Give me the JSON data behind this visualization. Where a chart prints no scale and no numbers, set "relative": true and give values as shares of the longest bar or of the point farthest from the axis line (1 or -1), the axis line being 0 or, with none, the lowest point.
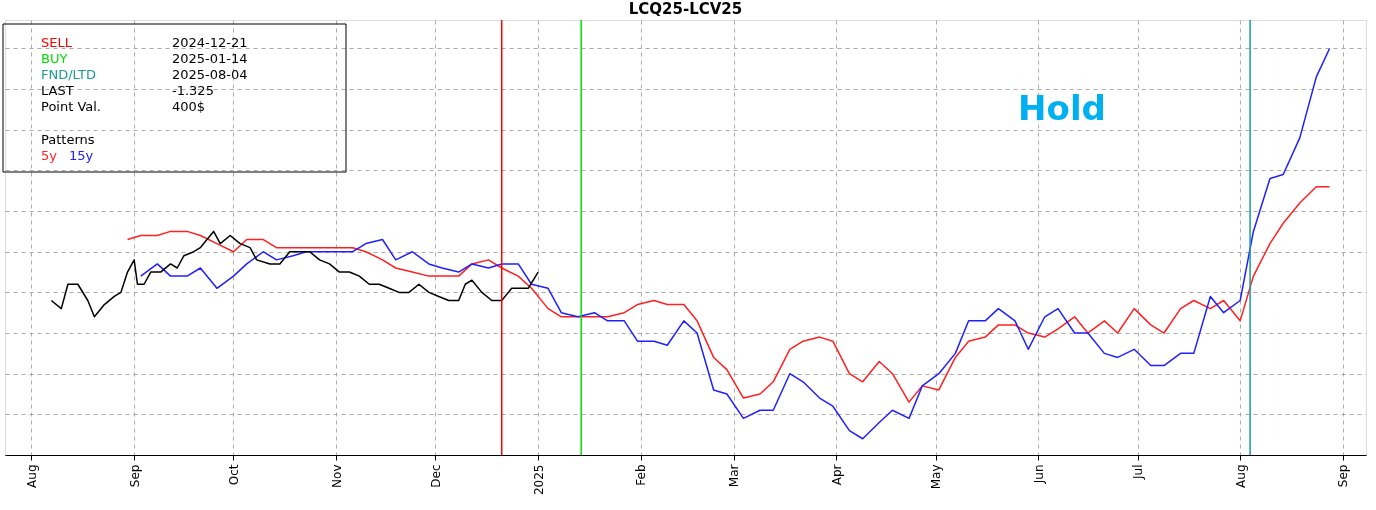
{
  "chart_data": {
    "type": "line",
    "title": "LCQ25-LCV25",
    "relative": true,
    "grid": true,
    "legend": "top left",
    "legend_title": "Patterns",
    "xlim": [
      "2024-07-24",
      "2025-09-08"
    ],
    "xticks": [
      {
        "value": "2024-08-01",
        "label": "Aug"
      },
      {
        "value": "2024-09-01",
        "label": "Sep"
      },
      {
        "value": "2024-10-01",
        "label": "Oct"
      },
      {
        "value": "2024-11-01",
        "label": "Nov"
      },
      {
        "value": "2024-12-01",
        "label": "Dec"
      },
      {
        "value": "2025-01-01",
        "label": "2025"
      },
      {
        "value": "2025-02-01",
        "label": "Feb"
      },
      {
        "value": "2025-03-01",
        "label": "Mar"
      },
      {
        "value": "2025-04-01",
        "label": "Apr"
      },
      {
        "value": "2025-05-01",
        "label": "May"
      },
      {
        "value": "2025-06-01",
        "label": "Jun"
      },
      {
        "value": "2025-07-01",
        "label": "Jul"
      },
      {
        "value": "2025-08-01",
        "label": "Aug"
      },
      {
        "value": "2025-09-01",
        "label": "Sep"
      }
    ],
    "x": [
      "2024-08-30",
      "2024-09-03",
      "2024-09-08",
      "2024-09-12",
      "2024-09-17",
      "2024-09-21",
      "2024-09-26",
      "2024-10-01",
      "2024-10-05",
      "2024-10-10",
      "2024-10-14",
      "2024-10-19",
      "2024-10-23",
      "2024-10-28",
      "2024-11-01",
      "2024-11-06",
      "2024-11-10",
      "2024-11-15",
      "2024-11-19",
      "2024-11-24",
      "2024-11-29",
      "2024-12-03",
      "2024-12-08",
      "2024-12-12",
      "2024-12-17",
      "2024-12-21",
      "2024-12-26",
      "2024-12-30",
      "2025-01-04",
      "2025-01-08",
      "2025-01-13",
      "2025-01-18",
      "2025-01-22",
      "2025-01-27",
      "2025-01-31",
      "2025-02-05",
      "2025-02-09",
      "2025-02-14",
      "2025-02-18",
      "2025-02-23",
      "2025-02-27",
      "2025-03-04",
      "2025-03-09",
      "2025-03-13",
      "2025-03-18",
      "2025-03-22",
      "2025-03-27",
      "2025-03-31",
      "2025-04-05",
      "2025-04-09",
      "2025-04-14",
      "2025-04-18",
      "2025-04-23",
      "2025-04-27",
      "2025-05-02",
      "2025-05-07",
      "2025-05-11",
      "2025-05-16",
      "2025-05-20",
      "2025-05-25",
      "2025-05-29",
      "2025-06-03",
      "2025-06-07",
      "2025-06-12",
      "2025-06-16",
      "2025-06-21",
      "2025-06-25",
      "2025-06-30",
      "2025-07-05",
      "2025-07-09",
      "2025-07-14",
      "2025-07-18",
      "2025-07-23",
      "2025-07-27",
      "2025-08-01",
      "2025-08-05",
      "2025-08-10",
      "2025-08-14",
      "2025-08-19",
      "2025-08-24",
      "2025-08-28"
    ],
    "series": [
      {
        "name": "5y",
        "color": "#ff2020",
        "values": [
          0.53,
          0.54,
          0.54,
          0.55,
          0.55,
          0.54,
          0.52,
          0.5,
          0.53,
          0.53,
          0.51,
          0.51,
          0.51,
          0.51,
          0.51,
          0.51,
          0.5,
          0.48,
          0.46,
          0.45,
          0.44,
          0.44,
          0.44,
          0.47,
          0.48,
          0.46,
          0.44,
          0.41,
          0.36,
          0.34,
          0.34,
          0.34,
          0.34,
          0.35,
          0.37,
          0.38,
          0.37,
          0.37,
          0.33,
          0.24,
          0.21,
          0.14,
          0.15,
          0.18,
          0.26,
          0.28,
          0.29,
          0.28,
          0.2,
          0.18,
          0.23,
          0.2,
          0.13,
          0.17,
          0.16,
          0.24,
          0.28,
          0.29,
          0.32,
          0.32,
          0.3,
          0.29,
          0.31,
          0.34,
          0.3,
          0.33,
          0.3,
          0.36,
          0.32,
          0.3,
          0.36,
          0.38,
          0.36,
          0.38,
          0.33,
          0.44,
          0.52,
          0.57,
          0.62,
          0.66,
          0.66
        ]
      },
      {
        "name": "15y",
        "color": "#2020ff",
        "values": [
          null,
          0.44,
          0.47,
          0.44,
          0.44,
          0.46,
          0.41,
          0.44,
          0.47,
          0.5,
          0.48,
          0.49,
          0.5,
          0.5,
          0.5,
          0.5,
          0.52,
          0.53,
          0.48,
          0.5,
          0.47,
          0.46,
          0.45,
          0.47,
          0.46,
          0.47,
          0.47,
          0.42,
          0.41,
          0.35,
          0.34,
          0.35,
          0.33,
          0.33,
          0.28,
          0.28,
          0.27,
          0.33,
          0.3,
          0.16,
          0.15,
          0.09,
          0.11,
          0.11,
          0.2,
          0.18,
          0.14,
          0.12,
          0.06,
          0.04,
          0.08,
          0.11,
          0.09,
          0.17,
          0.2,
          0.25,
          0.33,
          0.33,
          0.36,
          0.33,
          0.26,
          0.34,
          0.36,
          0.3,
          0.3,
          0.25,
          0.24,
          0.26,
          0.22,
          0.22,
          0.25,
          0.25,
          0.39,
          0.35,
          0.38,
          0.55,
          0.68,
          0.69,
          0.78,
          0.93,
          1
        ]
      },
      {
        "color": "#000000",
        "x": [
          "2024-08-07",
          "2024-08-10",
          "2024-08-12",
          "2024-08-15",
          "2024-08-18",
          "2024-08-20",
          "2024-08-23",
          "2024-08-26",
          "2024-08-28",
          "2024-08-30",
          "2024-09-01",
          "2024-09-02",
          "2024-09-04",
          "2024-09-06",
          "2024-09-09",
          "2024-09-12",
          "2024-09-14",
          "2024-09-16",
          "2024-09-19",
          "2024-09-21",
          "2024-09-22",
          "2024-09-25",
          "2024-09-27",
          "2024-09-30",
          "2024-10-03",
          "2024-10-06",
          "2024-10-08",
          "2024-10-12",
          "2024-10-15",
          "2024-10-18",
          "2024-10-21",
          "2024-10-24",
          "2024-10-27",
          "2024-10-30",
          "2024-11-02",
          "2024-11-05",
          "2024-11-08",
          "2024-11-11",
          "2024-11-14",
          "2024-11-17",
          "2024-11-20",
          "2024-11-23",
          "2024-11-26",
          "2024-11-29",
          "2024-12-02",
          "2024-12-05",
          "2024-12-08",
          "2024-12-10",
          "2024-12-12",
          "2024-12-15",
          "2024-12-18",
          "2024-12-21",
          "2024-12-24",
          "2024-12-27",
          "2024-12-29",
          "2025-01-01"
        ],
        "values": [
          0.38,
          0.36,
          0.42,
          0.42,
          0.38,
          0.34,
          0.37,
          0.39,
          0.4,
          0.45,
          0.48,
          0.42,
          0.42,
          0.45,
          0.45,
          0.47,
          0.46,
          0.49,
          0.5,
          0.51,
          0.52,
          0.55,
          0.52,
          0.54,
          0.52,
          0.51,
          0.48,
          0.47,
          0.47,
          0.5,
          0.5,
          0.5,
          0.48,
          0.47,
          0.45,
          0.45,
          0.44,
          0.42,
          0.42,
          0.41,
          0.4,
          0.4,
          0.42,
          0.4,
          0.39,
          0.38,
          0.38,
          0.42,
          0.43,
          0.4,
          0.38,
          0.38,
          0.41,
          0.41,
          0.41,
          0.45
        ]
      }
    ],
    "ref_lines": [
      {
        "axis": "x",
        "value": "2024-12-21",
        "color": "#ff0000"
      },
      {
        "axis": "x",
        "value": "2025-01-14",
        "color": "#00e000"
      },
      {
        "axis": "x",
        "value": "2025-08-04",
        "color": "#1a9a9a"
      }
    ],
    "annotations": [
      "SELL",
      "2024-12-21",
      "BUY",
      "2025-01-14",
      "FND/LTD",
      "2025-08-04",
      "LAST",
      "-1.325",
      "Point Val.",
      "400$",
      "Hold"
    ]
  }
}
